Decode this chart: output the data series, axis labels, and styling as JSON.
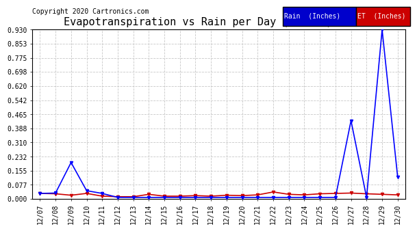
{
  "title": "Evapotranspiration vs Rain per Day (Inches) 20191231",
  "copyright": "Copyright 2020 Cartronics.com",
  "rain_label": "Rain  (Inches)",
  "et_label": "ET  (Inches)",
  "x_labels": [
    "12/07",
    "12/08",
    "12/09",
    "12/10",
    "12/11",
    "12/12",
    "12/13",
    "12/14",
    "12/15",
    "12/16",
    "12/17",
    "12/18",
    "12/19",
    "12/20",
    "12/21",
    "12/22",
    "12/23",
    "12/24",
    "12/25",
    "12/26",
    "12/27",
    "12/28",
    "12/29",
    "12/30"
  ],
  "rain_values": [
    0.03,
    0.032,
    0.2,
    0.045,
    0.03,
    0.008,
    0.008,
    0.008,
    0.008,
    0.008,
    0.008,
    0.008,
    0.008,
    0.008,
    0.008,
    0.008,
    0.008,
    0.008,
    0.008,
    0.008,
    0.43,
    0.008,
    0.93,
    0.12
  ],
  "et_values": [
    0.03,
    0.028,
    0.02,
    0.03,
    0.015,
    0.012,
    0.012,
    0.025,
    0.015,
    0.015,
    0.018,
    0.015,
    0.02,
    0.018,
    0.022,
    0.038,
    0.025,
    0.022,
    0.028,
    0.03,
    0.032,
    0.028,
    0.025,
    0.022
  ],
  "ylim": [
    0.0,
    0.93
  ],
  "yticks": [
    0.0,
    0.077,
    0.155,
    0.232,
    0.31,
    0.388,
    0.465,
    0.542,
    0.62,
    0.698,
    0.775,
    0.853,
    0.93
  ],
  "rain_color": "#0000ff",
  "et_color": "#cc0000",
  "background_color": "#ffffff",
  "grid_color": "#c8c8c8",
  "title_fontsize": 11,
  "copyright_fontsize": 7,
  "tick_fontsize": 7,
  "legend_rain_bg": "#0000cc",
  "legend_et_bg": "#cc0000"
}
